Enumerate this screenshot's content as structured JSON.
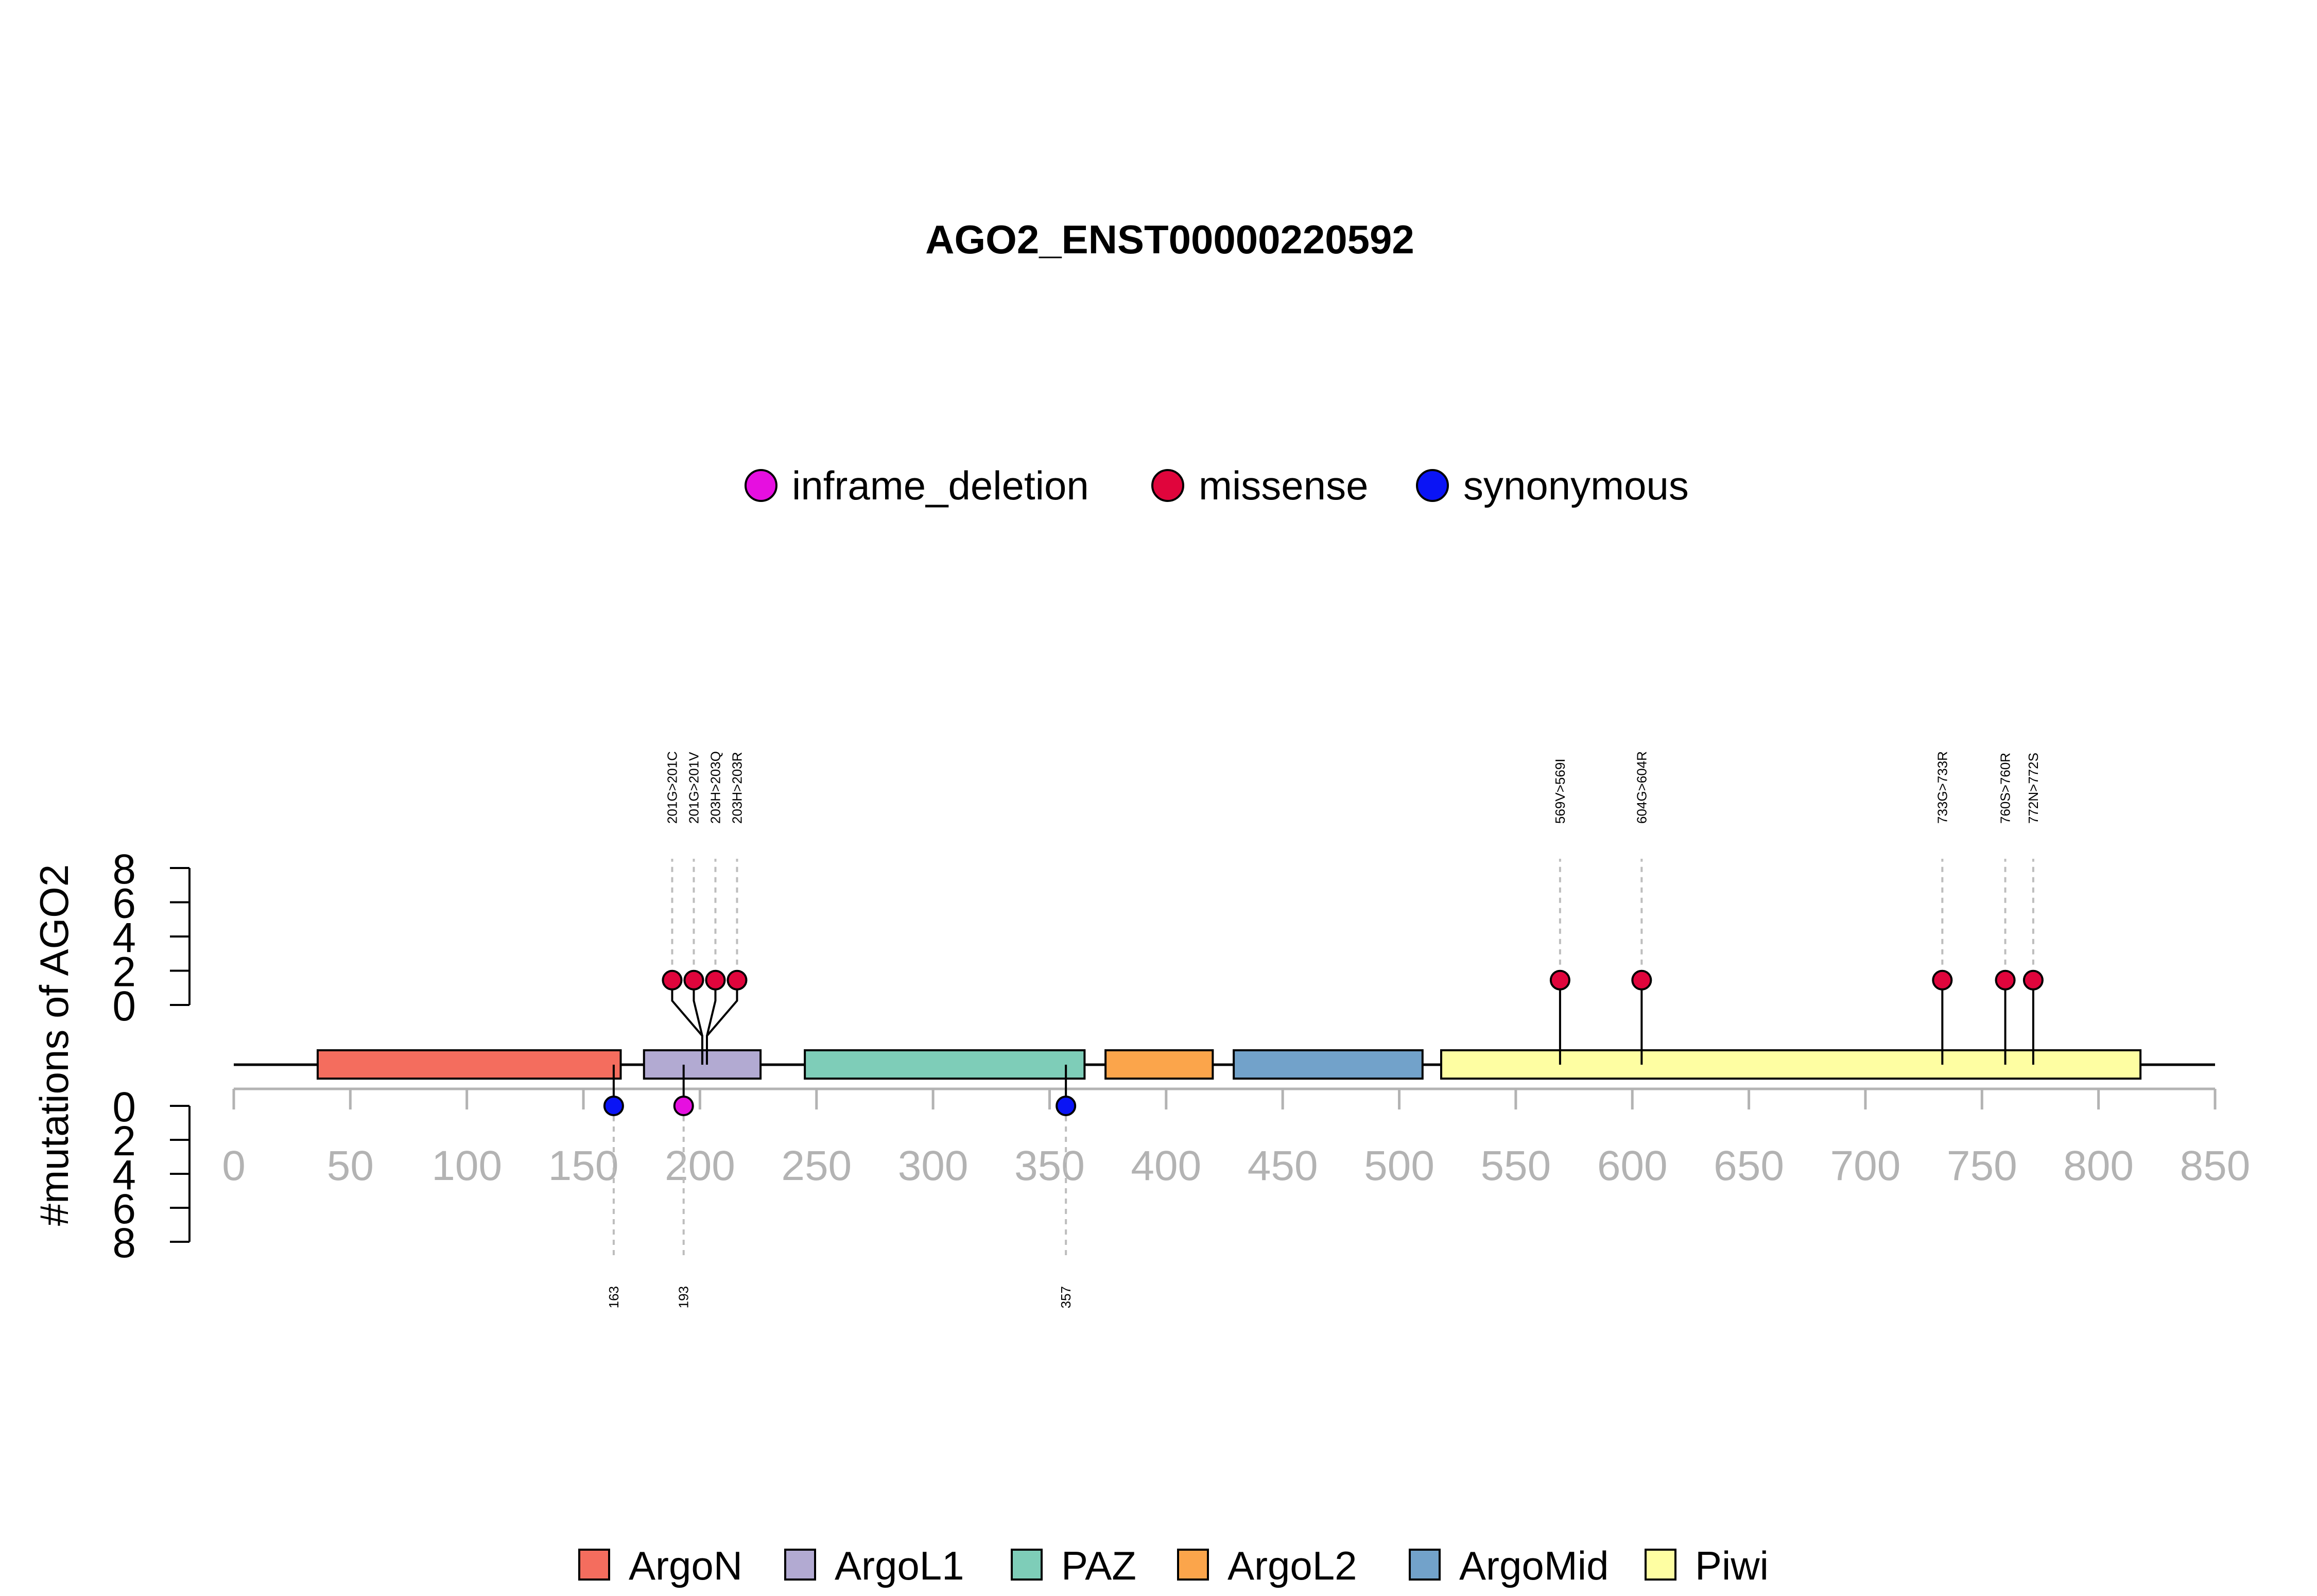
{
  "chart_data": {
    "type": "lollipop",
    "title": "AGO2_ENST00000220592",
    "ylabel": "#mutations of AGO2",
    "x_range": [
      0,
      850
    ],
    "x_ticks": [
      0,
      50,
      100,
      150,
      200,
      250,
      300,
      350,
      400,
      450,
      500,
      550,
      600,
      650,
      700,
      750,
      800,
      850
    ],
    "protein_length": 850,
    "y_ticks_top": [
      0,
      2,
      4,
      6,
      8
    ],
    "y_ticks_bottom": [
      0,
      2,
      4,
      6,
      8
    ],
    "mutation_types": [
      {
        "name": "inframe_deletion",
        "color": "#e60fe0"
      },
      {
        "name": "missense",
        "color": "#e0053c"
      },
      {
        "name": "synonymous",
        "color": "#0a14f5"
      }
    ],
    "domain_legend": [
      {
        "name": "ArgoN",
        "color": "#f46d5e"
      },
      {
        "name": "ArgoL1",
        "color": "#b2aad2"
      },
      {
        "name": "PAZ",
        "color": "#7ecdb8"
      },
      {
        "name": "ArgoL2",
        "color": "#fba54b"
      },
      {
        "name": "ArgoMid",
        "color": "#72a2ca"
      },
      {
        "name": "Piwi",
        "color": "#fefea2"
      }
    ],
    "domains": [
      {
        "name": "ArgoN",
        "start": 36,
        "end": 166
      },
      {
        "name": "ArgoL1",
        "start": 176,
        "end": 226
      },
      {
        "name": "PAZ",
        "start": 245,
        "end": 365
      },
      {
        "name": "ArgoL2",
        "start": 374,
        "end": 420
      },
      {
        "name": "ArgoMid",
        "start": 429,
        "end": 510
      },
      {
        "name": "Piwi",
        "start": 518,
        "end": 818
      }
    ],
    "mutations_top": [
      {
        "label": "201G>201C",
        "position": 201,
        "type": "missense",
        "count": 1
      },
      {
        "label": "201G>201V",
        "position": 201,
        "type": "missense",
        "count": 1
      },
      {
        "label": "203H>203Q",
        "position": 203,
        "type": "missense",
        "count": 1
      },
      {
        "label": "203H>203R",
        "position": 203,
        "type": "missense",
        "count": 1
      },
      {
        "label": "569V>569I",
        "position": 569,
        "type": "missense",
        "count": 1
      },
      {
        "label": "604G>604R",
        "position": 604,
        "type": "missense",
        "count": 1
      },
      {
        "label": "733G>733R",
        "position": 733,
        "type": "missense",
        "count": 1
      },
      {
        "label": "760S>760R",
        "position": 760,
        "type": "missense",
        "count": 1
      },
      {
        "label": "772N>772S",
        "position": 772,
        "type": "missense",
        "count": 1
      }
    ],
    "mutations_bottom": [
      {
        "label": "163",
        "position": 163,
        "type": "synonymous",
        "count": 1
      },
      {
        "label": "193",
        "position": 193,
        "type": "inframe_deletion",
        "count": 1
      },
      {
        "label": "357",
        "position": 357,
        "type": "synonymous",
        "count": 1
      }
    ]
  }
}
